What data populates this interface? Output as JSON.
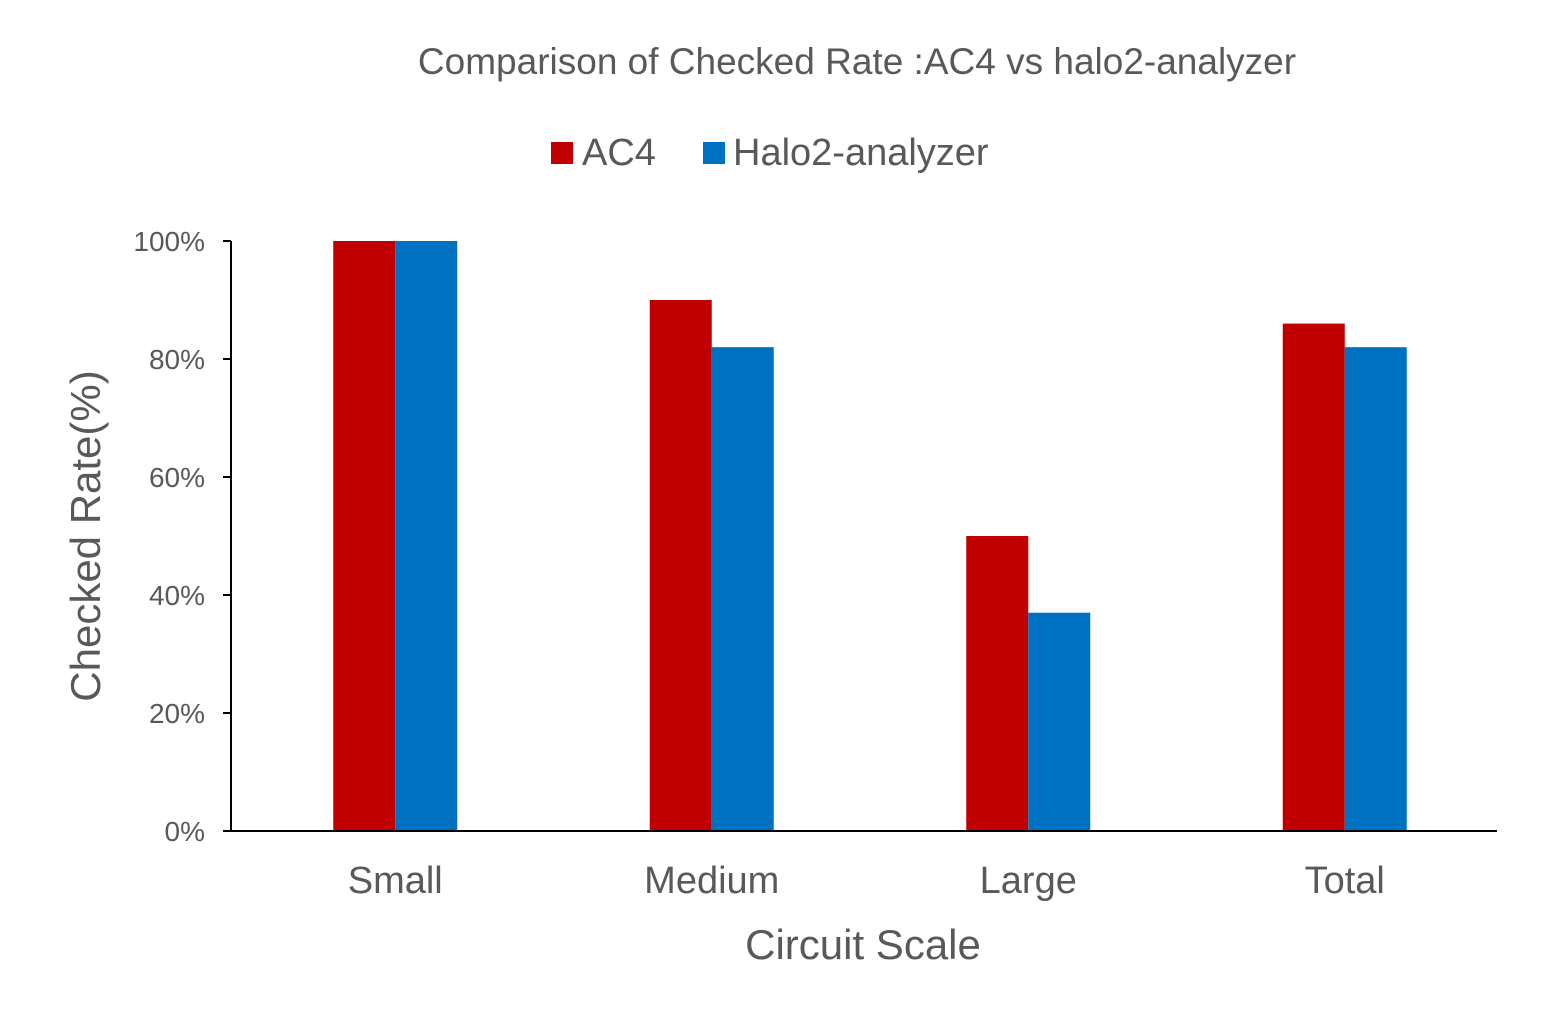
{
  "chart_data": {
    "type": "bar",
    "title": "Comparison of Checked Rate :AC4 vs halo2-analyzer",
    "xlabel": "Circuit Scale",
    "ylabel": "Checked Rate(%)",
    "categories": [
      "Small",
      "Medium",
      "Large",
      "Total"
    ],
    "series": [
      {
        "name": "AC4",
        "color": "#C00000",
        "values": [
          100,
          90,
          50,
          86
        ]
      },
      {
        "name": "Halo2-analyzer",
        "color": "#0070C0",
        "values": [
          100,
          82,
          37,
          82
        ]
      }
    ],
    "ylim": [
      0,
      100
    ],
    "yticks": [
      "0%",
      "20%",
      "40%",
      "60%",
      "80%",
      "100%"
    ],
    "grid": false,
    "legend": "top-center"
  }
}
